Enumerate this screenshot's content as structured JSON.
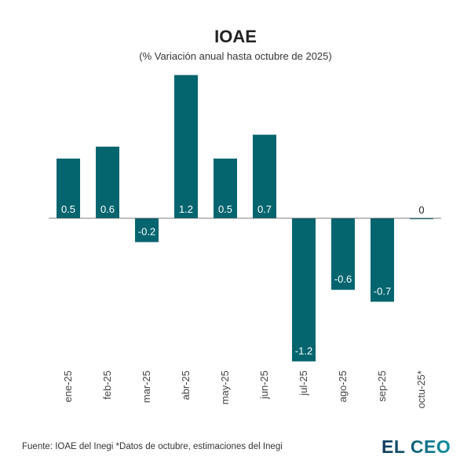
{
  "chart_data": {
    "type": "bar",
    "title": "IOAE",
    "subtitle": "(% Variación anual hasta octubre de 2025)",
    "categories": [
      "ene-25",
      "feb-25",
      "mar-25",
      "abr-25",
      "may-25",
      "jun-25",
      "jul-25",
      "ago-25",
      "sep-25",
      "octu-25*"
    ],
    "values": [
      0.5,
      0.6,
      -0.2,
      1.2,
      0.5,
      0.7,
      -1.2,
      -0.6,
      -0.7,
      0
    ],
    "labels": [
      "0.5",
      "0.6",
      "-0.2",
      "1.2",
      "0.5",
      "0.7",
      "-1.2",
      "-0.6",
      "-0.7",
      "0"
    ],
    "ylim": [
      -1.2,
      1.2
    ],
    "grid": false,
    "bar_color": "#05656f"
  },
  "footer": {
    "source": "Fuente: IOAE del Inegi *Datos de octubre, estimaciones del Inegi",
    "logo": "EL CEO"
  }
}
